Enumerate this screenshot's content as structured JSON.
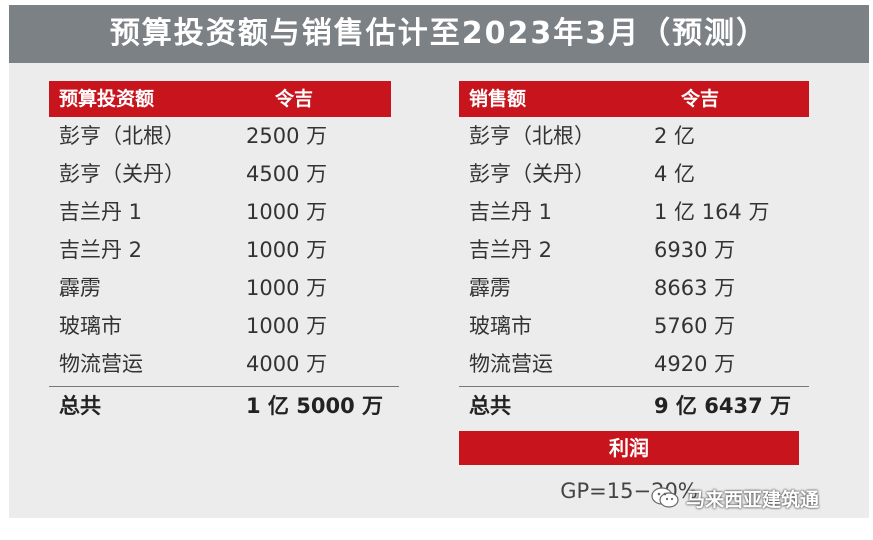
{
  "title": "预算投资额与销售估计至2023年3月（预测）",
  "investment_table": {
    "header": {
      "col1": "预算投资额",
      "col2": "令吉"
    },
    "rows": [
      {
        "name": "彭亨（北根）",
        "value": "2500 万"
      },
      {
        "name": "彭亨（关丹）",
        "value": "4500 万"
      },
      {
        "name": "吉兰丹 1",
        "value": "1000 万"
      },
      {
        "name": "吉兰丹 2",
        "value": "1000 万"
      },
      {
        "name": "霹雳",
        "value": "1000 万"
      },
      {
        "name": "玻璃市",
        "value": "1000 万"
      },
      {
        "name": "物流营运",
        "value": "4000 万"
      }
    ],
    "total": {
      "label": "总共",
      "value": "1 亿 5000 万"
    }
  },
  "sales_table": {
    "header": {
      "col1": "销售额",
      "col2": "令吉"
    },
    "rows": [
      {
        "name": "彭亨（北根）",
        "value": "2 亿"
      },
      {
        "name": "彭亨（关丹）",
        "value": "4 亿"
      },
      {
        "name": "吉兰丹 1",
        "value": "1 亿 164 万"
      },
      {
        "name": "吉兰丹 2",
        "value": "6930 万"
      },
      {
        "name": "霹雳",
        "value": "8663 万"
      },
      {
        "name": "玻璃市",
        "value": "5760 万"
      },
      {
        "name": "物流营运",
        "value": "4920 万"
      }
    ],
    "total": {
      "label": "总共",
      "value": "9 亿 6437 万"
    }
  },
  "profit": {
    "label": "利润",
    "value": "GP=15−20%"
  },
  "watermark": {
    "text": "马来西亚建筑通",
    "icon": "wechat-icon"
  },
  "colors": {
    "title_bg": "#7b8185",
    "header_red": "#c8141d",
    "panel_bg": "#ececec"
  }
}
